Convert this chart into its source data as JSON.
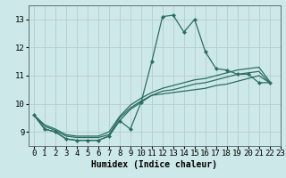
{
  "title": "",
  "xlabel": "Humidex (Indice chaleur)",
  "ylabel": "",
  "background_color": "#cce8e8",
  "grid_color": "#b8cccc",
  "line_color": "#2a6e60",
  "xlim": [
    -0.5,
    23
  ],
  "ylim": [
    8.5,
    13.5
  ],
  "yticks": [
    9,
    10,
    11,
    12,
    13
  ],
  "xticks": [
    0,
    1,
    2,
    3,
    4,
    5,
    6,
    7,
    8,
    9,
    10,
    11,
    12,
    13,
    14,
    15,
    16,
    17,
    18,
    19,
    20,
    21,
    22,
    23
  ],
  "lines": [
    [
      9.6,
      9.1,
      9.0,
      8.75,
      8.7,
      8.7,
      8.7,
      8.85,
      9.4,
      9.1,
      10.05,
      11.5,
      13.1,
      13.15,
      12.55,
      13.0,
      11.85,
      11.25,
      11.2,
      11.05,
      11.05,
      10.75,
      10.75
    ],
    [
      9.6,
      9.1,
      9.0,
      8.75,
      8.7,
      8.7,
      8.7,
      8.85,
      9.4,
      9.8,
      10.05,
      10.3,
      10.35,
      10.4,
      10.45,
      10.5,
      10.55,
      10.65,
      10.7,
      10.8,
      10.9,
      11.0,
      10.75
    ],
    [
      9.6,
      9.2,
      9.05,
      8.85,
      8.8,
      8.8,
      8.8,
      8.9,
      9.5,
      9.85,
      10.1,
      10.3,
      10.45,
      10.5,
      10.6,
      10.7,
      10.75,
      10.85,
      10.95,
      11.05,
      11.1,
      11.15,
      10.75
    ],
    [
      9.6,
      9.25,
      9.1,
      8.9,
      8.85,
      8.85,
      8.85,
      9.0,
      9.55,
      9.95,
      10.2,
      10.4,
      10.55,
      10.65,
      10.75,
      10.85,
      10.9,
      11.0,
      11.1,
      11.2,
      11.25,
      11.3,
      10.8
    ]
  ],
  "marker_line_idx": 0,
  "fontsize_xlabel": 7,
  "tick_labelsize": 6.5,
  "linewidth": 0.9,
  "markersize": 2.2
}
